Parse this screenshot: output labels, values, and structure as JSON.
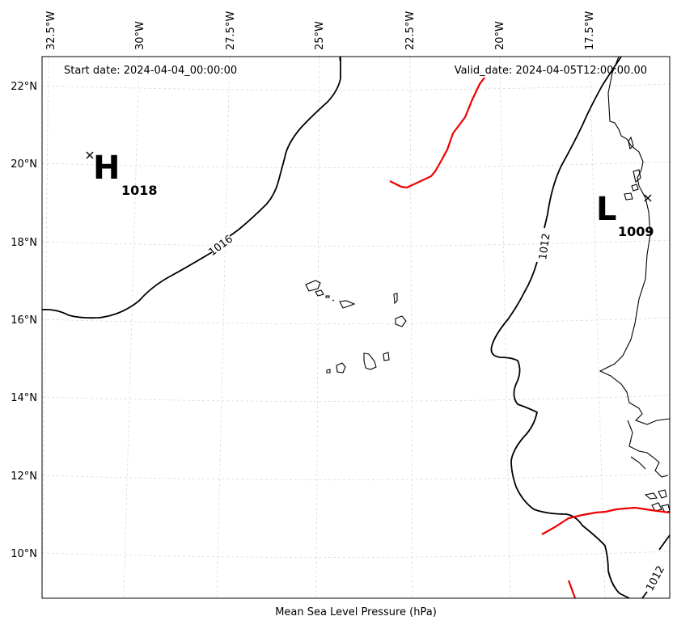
{
  "header": {
    "start_date": "Start date: 2024-04-04_00:00:00",
    "valid_date": "Valid_date: 2024-04-05T12:00:00.00"
  },
  "footer": {
    "caption": "Mean Sea Level Pressure (hPa)"
  },
  "axes": {
    "lon_labels": [
      "32.5°W",
      "30°W",
      "27.5°W",
      "25°W",
      "22.5°W",
      "20°W",
      "17.5°W"
    ],
    "lat_labels": [
      "22°N",
      "20°N",
      "18°N",
      "16°N",
      "14°N",
      "12°N",
      "10°N"
    ]
  },
  "pressure_centers": {
    "high": {
      "letter": "H",
      "value": "1018"
    },
    "low": {
      "letter": "L",
      "value": "1009"
    }
  },
  "isobar_labels": {
    "a": "1016",
    "b": "1012",
    "c": "1012"
  },
  "colors": {
    "isobar": "#000000",
    "front": "#ee0000",
    "coastline": "#000000",
    "grid": "#d9d9d9"
  }
}
